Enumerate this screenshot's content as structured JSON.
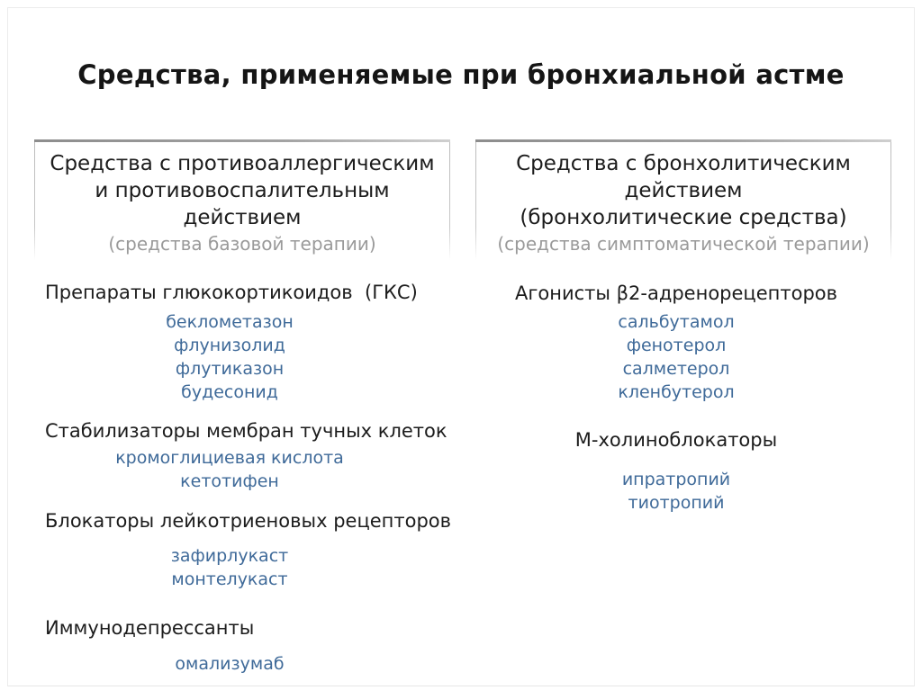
{
  "page": {
    "title": "Средства, применяемые при бронхиальной астме"
  },
  "colors": {
    "drug_blue": "#3f6a99",
    "muted_gray": "#9a9a9a",
    "text_black": "#1c1c1c",
    "box_border_dark": "#8d8d8d",
    "box_border_light": "#c7c7c7"
  },
  "boxes": {
    "left": {
      "lines": [
        "Средства с противоаллергическим",
        "и противовоспалительным",
        "действием"
      ],
      "subtitle": "(средства базовой терапии)"
    },
    "right": {
      "lines": [
        "Средства с бронхолитическим",
        "действием",
        "(бронхолитические средства)"
      ],
      "subtitle": "(средства симптоматической терапии)"
    }
  },
  "left_column": {
    "sections": [
      {
        "heading": "Препараты глюкокортикоидов  (ГКС)",
        "items": [
          "беклометазон",
          "флунизолид",
          "флутиказон",
          "будесонид"
        ]
      },
      {
        "heading": "Стабилизаторы мембран тучных клеток",
        "items": [
          "кромоглициевая кислота",
          "кетотифен"
        ]
      },
      {
        "heading": "Блокаторы лейкотриеновых рецепторов",
        "items": [
          "зафирлукаст",
          "монтелукаст"
        ]
      },
      {
        "heading": "Иммунодепрессанты",
        "items": [
          "омализумаб"
        ]
      }
    ]
  },
  "right_column": {
    "sections": [
      {
        "heading": "Агонисты β2-адренорецепторов",
        "items": [
          "сальбутамол",
          "фенотерол",
          "салметерол",
          "кленбутерол"
        ]
      },
      {
        "heading": "М-холиноблокаторы",
        "items": [
          "ипратропий",
          "тиотропий"
        ]
      }
    ]
  }
}
